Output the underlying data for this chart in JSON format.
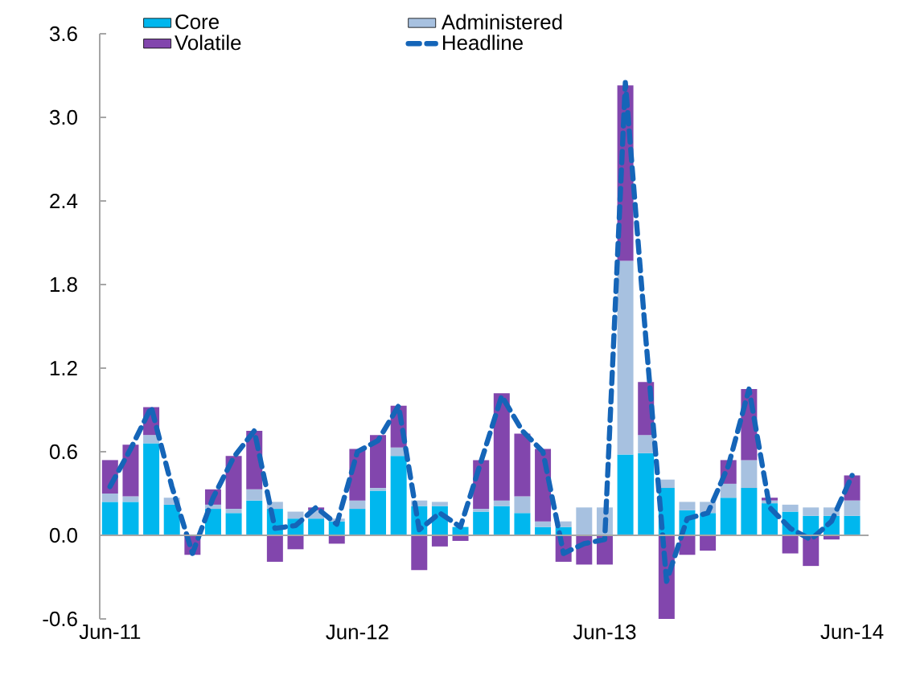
{
  "chart_data": {
    "type": "bar",
    "stacked": true,
    "legend": "top",
    "categories": [
      "Jun-11",
      null,
      null,
      null,
      null,
      null,
      null,
      null,
      null,
      null,
      null,
      null,
      "Jun-12",
      null,
      null,
      null,
      null,
      null,
      null,
      null,
      null,
      null,
      null,
      null,
      "Jun-13",
      null,
      null,
      null,
      null,
      null,
      null,
      null,
      null,
      null,
      null,
      null,
      "Jun-14"
    ],
    "ylim": [
      -0.6,
      3.6
    ],
    "yticks": [
      -0.6,
      {
        "value": 0,
        "label": "0.0"
      },
      0.6,
      1.2,
      1.8,
      2.4,
      {
        "value": 3,
        "label": "3.0"
      },
      3.6
    ],
    "series": [
      {
        "name": "Core",
        "color": "#00b7ee",
        "values": [
          0.24,
          0.24,
          0.66,
          0.22,
          0,
          0.19,
          0.16,
          0.25,
          0.19,
          0.12,
          0.12,
          0.1,
          0.19,
          0.32,
          0.57,
          0.21,
          0.21,
          0.06,
          0.17,
          0.21,
          0.16,
          0.06,
          0.06,
          0,
          0,
          0.58,
          0.59,
          0.34,
          0.18,
          0.16,
          0.27,
          0.34,
          0.23,
          0.17,
          0.14,
          0.14,
          0.14
        ]
      },
      {
        "name": "Administered",
        "color": "#a7c1e0",
        "values": [
          0.06,
          0.04,
          0.06,
          0.05,
          0,
          0.03,
          0.03,
          0.08,
          0.05,
          0.05,
          0.06,
          0.02,
          0.06,
          0.02,
          0.06,
          0.04,
          0.03,
          null,
          0.02,
          0.04,
          0.12,
          0.04,
          0.04,
          0.2,
          0.2,
          1.39,
          0.13,
          0.06,
          0.06,
          0.08,
          0.1,
          0.2,
          0.02,
          0.05,
          0.06,
          0.06,
          0.11
        ]
      },
      {
        "name": "Volatile",
        "color": "#8246ad",
        "values": [
          0.24,
          0.37,
          0.2,
          0,
          -0.14,
          0.11,
          0.38,
          0.42,
          -0.19,
          -0.1,
          0.02,
          -0.06,
          0.37,
          0.38,
          0.3,
          -0.25,
          -0.08,
          -0.04,
          0.35,
          0.77,
          0.45,
          0.52,
          -0.19,
          -0.21,
          -0.21,
          1.26,
          0.38,
          -0.6,
          -0.14,
          -0.11,
          0.17,
          0.51,
          0.02,
          -0.13,
          -0.22,
          -0.03,
          0.18
        ]
      },
      {
        "name": "Headline",
        "type": "line",
        "line_style": "dashed",
        "color": "#1565b8",
        "values": [
          0.35,
          0.62,
          0.92,
          0.35,
          -0.13,
          0.27,
          0.56,
          0.75,
          0.05,
          0.07,
          0.2,
          0.08,
          0.6,
          0.68,
          0.93,
          0.04,
          0.16,
          0.06,
          0.53,
          1.0,
          0.75,
          0.6,
          -0.13,
          -0.06,
          -0.03,
          3.25,
          1.4,
          -0.33,
          0.12,
          0.16,
          0.5,
          1.05,
          0.2,
          0.05,
          -0.03,
          0.1,
          0.43
        ]
      }
    ]
  }
}
